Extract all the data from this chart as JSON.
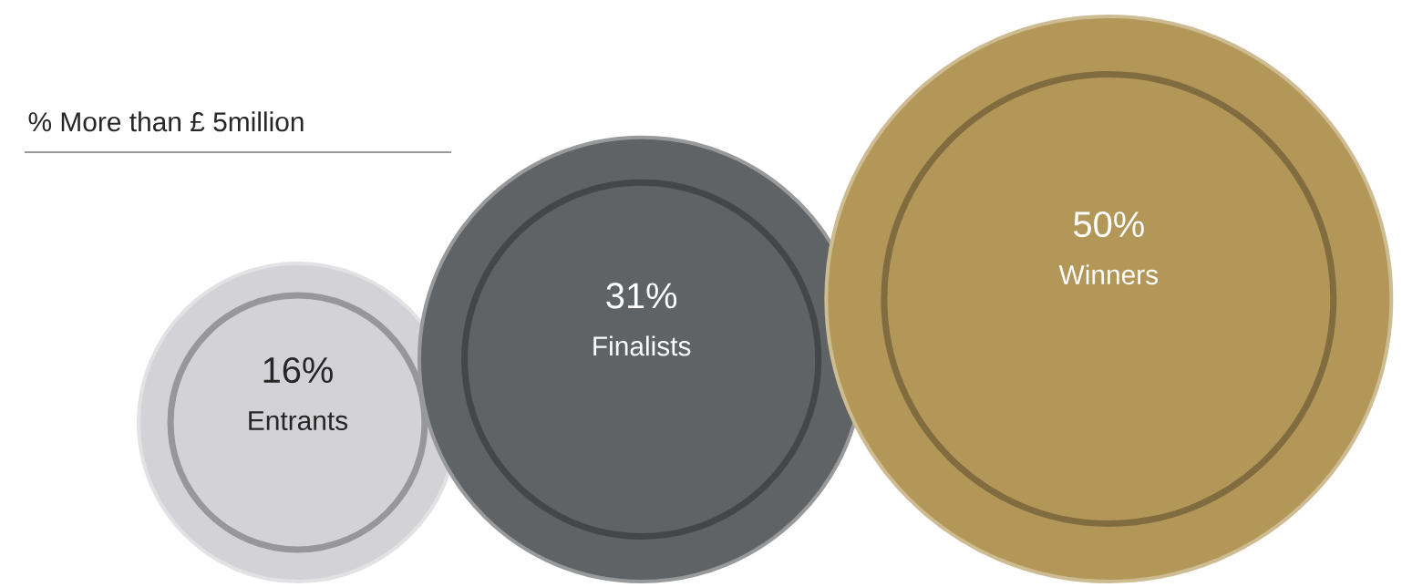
{
  "chart_data": {
    "type": "other",
    "title": "% More than £ 5million",
    "categories": [
      "Entrants",
      "Finalists",
      "Winners"
    ],
    "values": [
      16,
      31,
      50
    ],
    "value_labels": [
      "16%",
      "31%",
      "50%"
    ],
    "colors": [
      "#d3d2d6",
      "#5f6366",
      "#b39758"
    ]
  }
}
